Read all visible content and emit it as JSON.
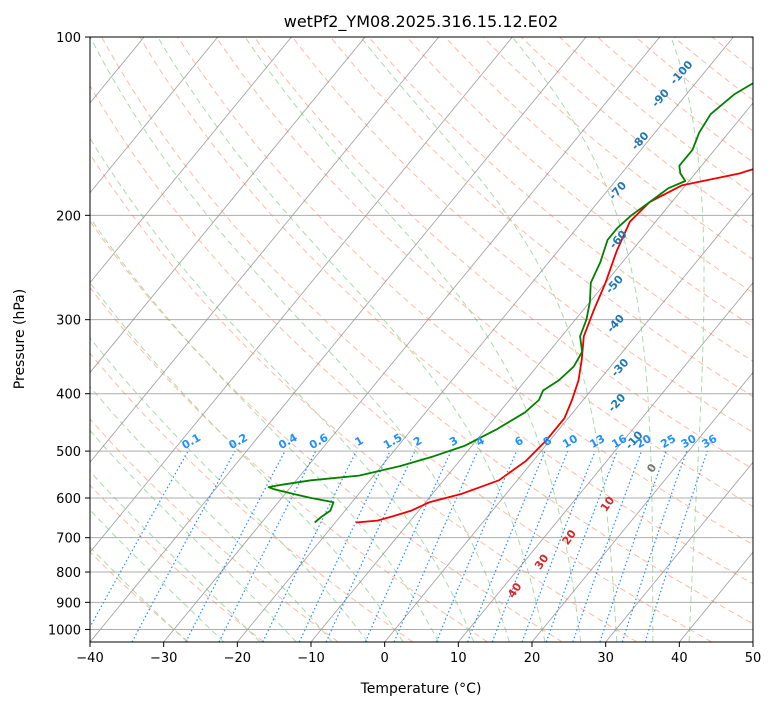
{
  "chart_data": {
    "type": "line",
    "subtype": "skew-T log-P diagram",
    "title": "wetPf2_YM08.2025.316.15.12.E02",
    "xlabel": "Temperature (°C)",
    "ylabel": "Pressure (hPa)",
    "xlim": [
      -40,
      50
    ],
    "ylim": [
      1050,
      100
    ],
    "x_ticks": [
      "−40",
      "−30",
      "−20",
      "−10",
      "0",
      "10",
      "20",
      "30",
      "40",
      "50"
    ],
    "y_ticks": [
      "100",
      "200",
      "300",
      "400",
      "500",
      "600",
      "700",
      "800",
      "900",
      "1000"
    ],
    "grid": true,
    "dry_adiabat_labels": [
      "-100",
      "-90",
      "-80",
      "-70",
      "-60",
      "-50",
      "-40",
      "-30",
      "-20",
      "-10"
    ],
    "moist_adiabat_labels": [
      "0",
      "10",
      "20",
      "30",
      "40"
    ],
    "mixing_ratio_labels": [
      "0.1",
      "0.2",
      "0.4",
      "0.6",
      "1",
      "1.5",
      "2",
      "3",
      "4",
      "6",
      "8",
      "10",
      "13",
      "16",
      "20",
      "25",
      "30",
      "36"
    ],
    "colors": {
      "temperature": "#ee0000",
      "dewpoint": "#008000",
      "dry_adiabat_label": "#1f77b4",
      "moist_adiabat_label": "#d62728",
      "mixing_ratio": "#1e90ff",
      "dry_adiabat_line": "#ffb49a",
      "moist_adiabat_line": "#a0d8a0",
      "isotherm": "#888888",
      "isobar": "#999999"
    },
    "series": [
      {
        "name": "Temperature",
        "points": [
          {
            "p": 660,
            "t": -17.2
          },
          {
            "p": 655,
            "t": -14.5
          },
          {
            "p": 645,
            "t": -13.0
          },
          {
            "p": 630,
            "t": -11.0
          },
          {
            "p": 610,
            "t": -9.5
          },
          {
            "p": 590,
            "t": -6.0
          },
          {
            "p": 560,
            "t": -2.5
          },
          {
            "p": 520,
            "t": -1.0
          },
          {
            "p": 480,
            "t": -0.5
          },
          {
            "p": 440,
            "t": -0.5
          },
          {
            "p": 410,
            "t": -1.5
          },
          {
            "p": 380,
            "t": -2.8
          },
          {
            "p": 350,
            "t": -4.7
          },
          {
            "p": 320,
            "t": -7.0
          },
          {
            "p": 290,
            "t": -8.5
          },
          {
            "p": 260,
            "t": -10.0
          },
          {
            "p": 230,
            "t": -12.0
          },
          {
            "p": 205,
            "t": -13.5
          },
          {
            "p": 190,
            "t": -13.0
          },
          {
            "p": 178,
            "t": -10.5
          },
          {
            "p": 170,
            "t": -4.0
          },
          {
            "p": 160,
            "t": 1.0
          },
          {
            "p": 150,
            "t": 3.0
          },
          {
            "p": 140,
            "t": 5.0
          },
          {
            "p": 128,
            "t": 7.0
          },
          {
            "p": 118,
            "t": 10.0
          },
          {
            "p": 110,
            "t": 13.0
          },
          {
            "p": 104,
            "t": 15.5
          },
          {
            "p": 100,
            "t": 17.0
          }
        ]
      },
      {
        "name": "Dewpoint",
        "points": [
          {
            "p": 660,
            "t": -22.8
          },
          {
            "p": 645,
            "t": -22.5
          },
          {
            "p": 630,
            "t": -22.0
          },
          {
            "p": 610,
            "t": -22.5
          },
          {
            "p": 600,
            "t": -26.0
          },
          {
            "p": 590,
            "t": -29.0
          },
          {
            "p": 580,
            "t": -32.0
          },
          {
            "p": 575,
            "t": -33.0
          },
          {
            "p": 570,
            "t": -31.5
          },
          {
            "p": 560,
            "t": -28.0
          },
          {
            "p": 550,
            "t": -22.0
          },
          {
            "p": 530,
            "t": -17.5
          },
          {
            "p": 510,
            "t": -14.0
          },
          {
            "p": 490,
            "t": -11.0
          },
          {
            "p": 460,
            "t": -8.5
          },
          {
            "p": 430,
            "t": -6.5
          },
          {
            "p": 410,
            "t": -6.0
          },
          {
            "p": 395,
            "t": -6.5
          },
          {
            "p": 380,
            "t": -5.5
          },
          {
            "p": 360,
            "t": -5.0
          },
          {
            "p": 340,
            "t": -5.5
          },
          {
            "p": 320,
            "t": -7.5
          },
          {
            "p": 300,
            "t": -8.5
          },
          {
            "p": 280,
            "t": -10.0
          },
          {
            "p": 260,
            "t": -12.0
          },
          {
            "p": 240,
            "t": -13.0
          },
          {
            "p": 220,
            "t": -14.5
          },
          {
            "p": 210,
            "t": -14.5
          },
          {
            "p": 200,
            "t": -14.0
          },
          {
            "p": 190,
            "t": -13.0
          },
          {
            "p": 180,
            "t": -12.0
          },
          {
            "p": 175,
            "t": -10.5
          },
          {
            "p": 170,
            "t": -12.0
          },
          {
            "p": 165,
            "t": -13.0
          },
          {
            "p": 155,
            "t": -13.0
          },
          {
            "p": 145,
            "t": -14.0
          },
          {
            "p": 135,
            "t": -14.5
          },
          {
            "p": 125,
            "t": -13.5
          },
          {
            "p": 117,
            "t": -11.5
          },
          {
            "p": 110,
            "t": -9.0
          },
          {
            "p": 104,
            "t": -7.0
          },
          {
            "p": 100,
            "t": -6.0
          }
        ]
      }
    ]
  }
}
